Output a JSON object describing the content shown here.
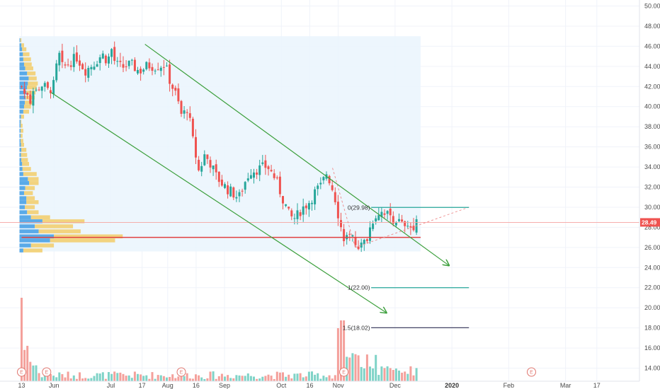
{
  "chart_data": {
    "type": "candlestick",
    "y_axis": {
      "ticks": [
        "50.00",
        "48.00",
        "46.00",
        "44.00",
        "42.00",
        "40.00",
        "38.00",
        "36.00",
        "34.00",
        "32.00",
        "30.00",
        "28.00",
        "26.00",
        "24.00",
        "22.00",
        "20.00",
        "18.00",
        "16.00",
        "14.00"
      ],
      "range": [
        12.7,
        50.6
      ],
      "position": "right"
    },
    "x_axis": {
      "ticks": [
        {
          "label": "13",
          "month": 5.43
        },
        {
          "label": "Jun",
          "month": 6.0
        },
        {
          "label": "Jul",
          "month": 7.0
        },
        {
          "label": "17",
          "month": 7.55
        },
        {
          "label": "Aug",
          "month": 8.0
        },
        {
          "label": "16",
          "month": 8.5
        },
        {
          "label": "Sep",
          "month": 9.0
        },
        {
          "label": "Oct",
          "month": 10.0
        },
        {
          "label": "16",
          "month": 10.5
        },
        {
          "label": "Nov",
          "month": 11.0
        },
        {
          "label": "Dec",
          "month": 12.0
        },
        {
          "label": "2020",
          "month": 13.0,
          "bold": true
        },
        {
          "label": "Feb",
          "month": 14.0
        },
        {
          "label": "Mar",
          "month": 15.0
        },
        {
          "label": "17",
          "month": 15.55
        }
      ],
      "range": [
        5.05,
        16.3
      ]
    },
    "last_price": {
      "value": 28.49,
      "label": "28.49"
    },
    "support_level": 27.0,
    "price_path": [
      [
        5.43,
        42.0
      ],
      [
        5.5,
        41.0
      ],
      [
        5.6,
        40.6
      ],
      [
        5.7,
        41.8
      ],
      [
        5.8,
        42.2
      ],
      [
        5.9,
        41.5
      ],
      [
        6.0,
        42.2
      ],
      [
        6.08,
        45.4
      ],
      [
        6.15,
        43.8
      ],
      [
        6.25,
        44.3
      ],
      [
        6.4,
        44.9
      ],
      [
        6.55,
        43.6
      ],
      [
        6.7,
        44.3
      ],
      [
        6.85,
        45.2
      ],
      [
        6.95,
        44.5
      ],
      [
        7.0,
        46.0
      ],
      [
        7.08,
        44.2
      ],
      [
        7.2,
        43.9
      ],
      [
        7.35,
        44.2
      ],
      [
        7.5,
        43.5
      ],
      [
        7.65,
        44.1
      ],
      [
        7.8,
        44.0
      ],
      [
        7.95,
        44.2
      ],
      [
        8.05,
        42.4
      ],
      [
        8.15,
        41.1
      ],
      [
        8.25,
        39.0
      ],
      [
        8.35,
        39.9
      ],
      [
        8.45,
        36.4
      ],
      [
        8.55,
        33.5
      ],
      [
        8.65,
        35.2
      ],
      [
        8.75,
        34.4
      ],
      [
        8.85,
        33.1
      ],
      [
        8.95,
        32.4
      ],
      [
        9.05,
        31.8
      ],
      [
        9.15,
        31.4
      ],
      [
        9.25,
        30.9
      ],
      [
        9.35,
        32.4
      ],
      [
        9.45,
        33.6
      ],
      [
        9.6,
        33.8
      ],
      [
        9.75,
        34.1
      ],
      [
        9.9,
        32.8
      ],
      [
        10.0,
        31.2
      ],
      [
        10.08,
        30.1
      ],
      [
        10.15,
        29.0
      ],
      [
        10.25,
        28.9
      ],
      [
        10.35,
        29.8
      ],
      [
        10.5,
        30.6
      ],
      [
        10.6,
        31.6
      ],
      [
        10.7,
        32.1
      ],
      [
        10.8,
        33.5
      ],
      [
        10.9,
        31.8
      ],
      [
        10.98,
        30.2
      ],
      [
        11.02,
        28.3
      ],
      [
        11.1,
        27.1
      ],
      [
        11.2,
        26.9
      ],
      [
        11.3,
        26.5
      ],
      [
        11.4,
        26.1
      ],
      [
        11.5,
        26.8
      ],
      [
        11.6,
        28.7
      ],
      [
        11.7,
        29.5
      ],
      [
        11.8,
        29.7
      ],
      [
        11.9,
        29.1
      ],
      [
        12.0,
        28.8
      ],
      [
        12.1,
        28.4
      ],
      [
        12.2,
        27.7
      ],
      [
        12.3,
        28.1
      ],
      [
        12.4,
        28.6
      ]
    ],
    "volume_profile": {
      "price_range": [
        25.6,
        47.0
      ],
      "rows": [
        [
          25.7,
          1,
          6
        ],
        [
          26.2,
          3,
          9
        ],
        [
          26.7,
          8,
          25
        ],
        [
          27.1,
          9,
          27
        ],
        [
          27.6,
          5,
          16
        ],
        [
          28.1,
          4,
          14
        ],
        [
          28.6,
          6,
          17
        ],
        [
          29.0,
          3,
          8
        ],
        [
          29.5,
          2,
          5
        ],
        [
          30.0,
          1.4,
          4
        ],
        [
          30.5,
          1.8,
          5
        ],
        [
          30.9,
          1.8,
          4
        ],
        [
          31.4,
          1.2,
          3.5
        ],
        [
          31.9,
          1.5,
          4
        ],
        [
          32.4,
          2.5,
          5
        ],
        [
          32.8,
          2.2,
          5
        ],
        [
          33.3,
          1,
          4.5
        ],
        [
          33.8,
          0.8,
          3
        ],
        [
          34.3,
          0.7,
          2.5
        ],
        [
          34.7,
          0.5,
          2.2
        ],
        [
          35.2,
          0.4,
          2
        ],
        [
          35.7,
          0.5,
          1.8
        ],
        [
          36.2,
          0.4,
          1.2
        ],
        [
          36.6,
          0.3,
          1.0
        ],
        [
          37.1,
          0.3,
          0.8
        ],
        [
          37.6,
          0.3,
          1.0
        ],
        [
          38.1,
          0.3,
          0.8
        ],
        [
          38.5,
          0.3,
          0.5
        ],
        [
          39.0,
          0.4,
          1.2
        ],
        [
          39.5,
          1.0,
          2.5
        ],
        [
          40.0,
          1.2,
          3.0
        ],
        [
          40.4,
          1.4,
          3.5
        ],
        [
          40.9,
          1.6,
          4.0
        ],
        [
          41.4,
          1.8,
          4.2
        ],
        [
          41.9,
          2.0,
          4.5
        ],
        [
          42.3,
          2.2,
          4.8
        ],
        [
          42.8,
          2.4,
          4.5
        ],
        [
          43.3,
          2.0,
          4.2
        ],
        [
          43.8,
          1.5,
          3.6
        ],
        [
          44.2,
          1.2,
          3.2
        ],
        [
          44.7,
          1.0,
          3.0
        ],
        [
          45.2,
          0.9,
          2.6
        ],
        [
          45.7,
          0.7,
          1.8
        ],
        [
          46.1,
          0.5,
          1.2
        ],
        [
          46.6,
          0.2,
          0.5
        ]
      ]
    },
    "trend_channel": [
      {
        "from": [
          7.6,
          46.2
        ],
        "to": [
          12.95,
          24.2
        ]
      },
      {
        "from": [
          5.95,
          41.4
        ],
        "to": [
          11.85,
          19.5
        ]
      }
    ],
    "fibonacci": [
      {
        "label": "0(29.98)",
        "price": 29.98
      },
      {
        "label": "1(22.00)",
        "price": 22.0
      },
      {
        "label": "1.5(18.02)",
        "price": 18.02
      }
    ],
    "earnings_markers": [
      {
        "month": 5.43,
        "label": "E"
      },
      {
        "month": 5.87,
        "label": "E"
      },
      {
        "month": 8.24,
        "label": "E"
      },
      {
        "month": 11.1,
        "label": "E"
      },
      {
        "month": 14.4,
        "label": "E"
      }
    ],
    "colors": {
      "up": "#26a69a",
      "down": "#ef5350",
      "volume_up": "#7fd3c7",
      "volume_down": "#f4a09b",
      "profile_up": "#4da3e6",
      "profile_down": "#f2cd68",
      "channel": "#3b9f3b",
      "support": "#e04040",
      "fib": "#26a69a",
      "fib_ext": "#444466",
      "last_price": "#ef5350"
    }
  }
}
